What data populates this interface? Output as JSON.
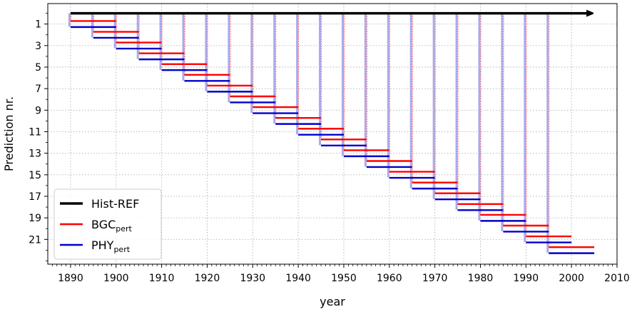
{
  "chart_data": {
    "type": "line",
    "title": "",
    "xlabel": "year",
    "ylabel": "Prediction nr.",
    "xlim": [
      1885,
      2010
    ],
    "ylim": [
      23.3,
      -0.9
    ],
    "x_ticks": [
      1890,
      1900,
      1910,
      1920,
      1930,
      1940,
      1950,
      1960,
      1970,
      1980,
      1990,
      2000,
      2010
    ],
    "y_ticks": [
      1,
      3,
      5,
      7,
      9,
      11,
      13,
      15,
      17,
      19,
      21
    ],
    "grid": true,
    "legend_position": "bottom-left",
    "colors": {
      "hist": "#000000",
      "bgc": "#ff0000",
      "phy": "#0000cc",
      "phy_light": "#aaaaee",
      "bgc_light": "#ff6666"
    },
    "hist_ref": {
      "x_start": 1890,
      "x_end": 2005,
      "y": 0
    },
    "predictions": {
      "count": 22,
      "first_start": 1890,
      "step": 5,
      "length": 10
    },
    "legend": [
      {
        "key": "hist",
        "label": "Hist-REF",
        "sub": ""
      },
      {
        "key": "bgc",
        "label": "BGC",
        "sub": "pert"
      },
      {
        "key": "phy",
        "label": "PHY",
        "sub": "pert"
      }
    ]
  }
}
